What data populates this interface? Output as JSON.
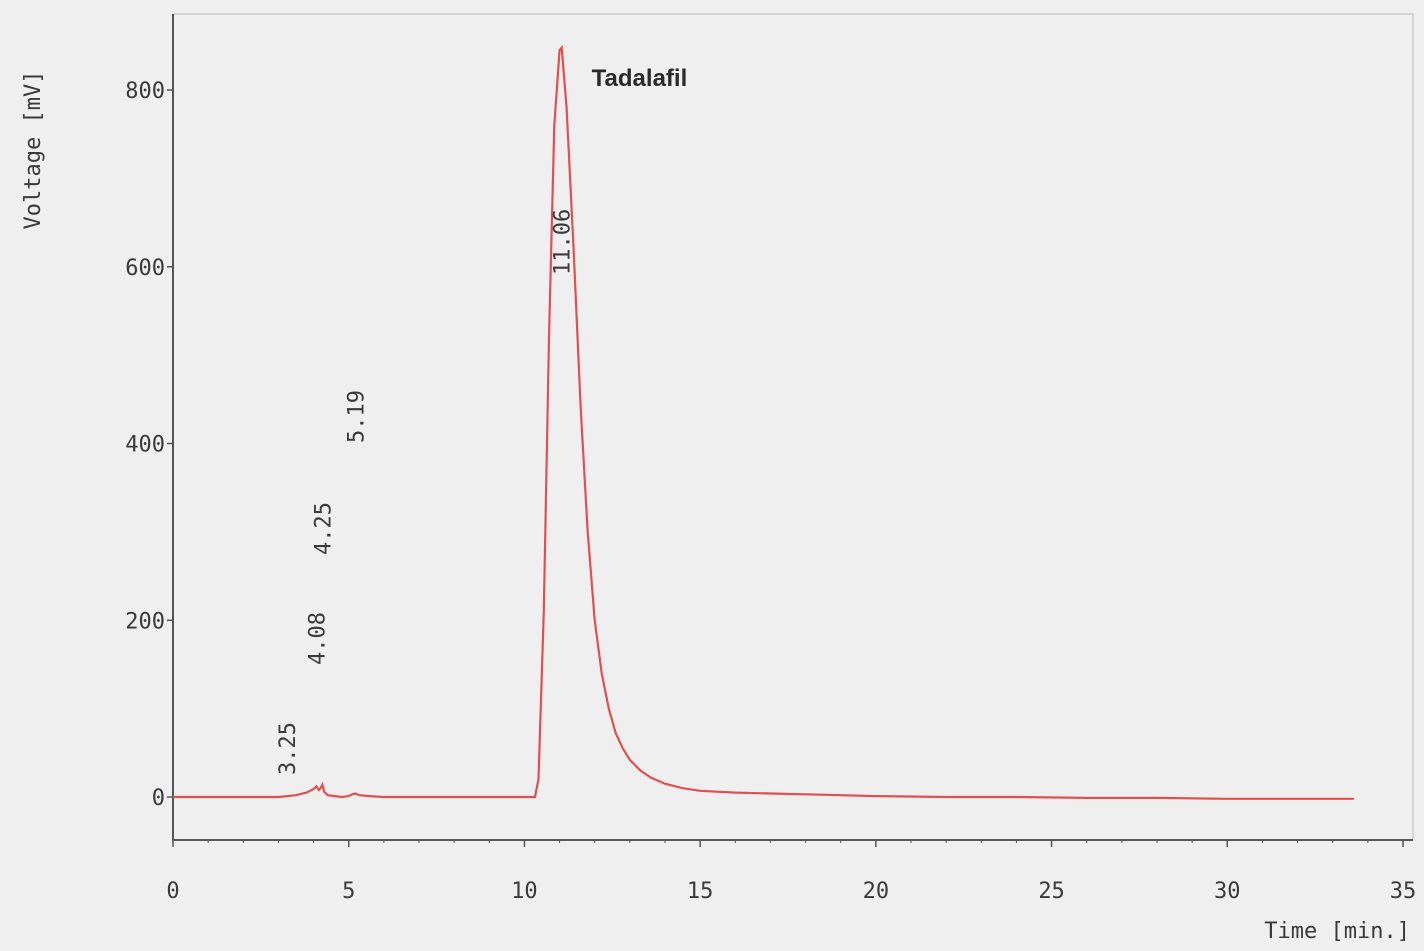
{
  "chart_data": {
    "type": "line",
    "title": "",
    "xlabel": "Time [min.]",
    "ylabel": "Voltage [mV]",
    "xlim": [
      0,
      35
    ],
    "ylim": [
      -50,
      880
    ],
    "x_ticks": [
      0,
      5,
      10,
      15,
      20,
      25,
      30,
      35
    ],
    "y_ticks": [
      0,
      200,
      400,
      600,
      800
    ],
    "grid": false,
    "legend": "none",
    "line_color": "#e05050",
    "axis_color": "#555555",
    "peak_labels": [
      {
        "time": 3.25,
        "label": "3.25",
        "height": 0
      },
      {
        "time": 4.08,
        "label": "4.08",
        "height": 5
      },
      {
        "time": 4.25,
        "label": "4.25",
        "height": 8
      },
      {
        "time": 5.19,
        "label": "5.19",
        "height": 3
      },
      {
        "time": 11.06,
        "label": "11.06",
        "height": 845
      }
    ],
    "annotations": [
      {
        "text": "Tadalafil",
        "time": 11.06,
        "value": 845
      }
    ],
    "series": [
      {
        "x": [
          0,
          1,
          2,
          3,
          3.25,
          3.5,
          3.8,
          4.0,
          4.08,
          4.15,
          4.2,
          4.25,
          4.3,
          4.4,
          4.6,
          4.8,
          5.0,
          5.1,
          5.19,
          5.3,
          5.6,
          6,
          7,
          8,
          9,
          10,
          10.3,
          10.4,
          10.55,
          10.7,
          10.85,
          11.0,
          11.06,
          11.2,
          11.4,
          11.6,
          11.8,
          12.0,
          12.2,
          12.4,
          12.6,
          12.8,
          13.0,
          13.3,
          13.6,
          14.0,
          14.5,
          15,
          16,
          17,
          18,
          19,
          20,
          22,
          24,
          26,
          28,
          30,
          32,
          33.6
        ],
        "y": [
          0,
          0,
          0,
          0,
          1,
          2,
          5,
          9,
          12,
          8,
          10,
          14,
          6,
          2,
          1,
          0,
          1,
          3,
          4,
          2,
          1,
          0,
          0,
          0,
          0,
          0,
          0,
          20,
          210,
          520,
          760,
          845,
          848,
          780,
          620,
          440,
          300,
          200,
          140,
          100,
          72,
          55,
          42,
          30,
          22,
          15,
          10,
          7,
          5,
          4,
          3,
          2,
          1,
          0,
          0,
          -1,
          -1,
          -2,
          -2,
          -2
        ]
      }
    ]
  }
}
